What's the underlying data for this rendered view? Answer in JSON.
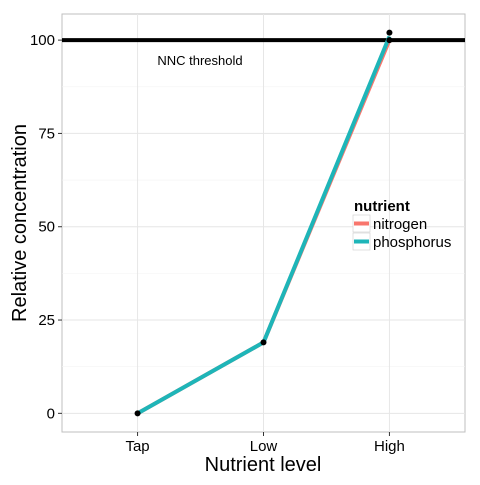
{
  "chart_data": {
    "type": "line",
    "categories": [
      "Tap",
      "Low",
      "High"
    ],
    "series": [
      {
        "name": "nitrogen",
        "color": "#F8766D",
        "values": [
          0,
          19,
          100
        ]
      },
      {
        "name": "phosphorus",
        "color": "#1EB5B8",
        "values": [
          0,
          19,
          101
        ]
      }
    ],
    "points": [
      {
        "category": "Tap",
        "value": 0
      },
      {
        "category": "Low",
        "value": 19
      },
      {
        "category": "High",
        "value": 100
      },
      {
        "category": "High",
        "value": 102
      }
    ],
    "point_color": "#000000",
    "hline": {
      "value": 100,
      "color": "#000000",
      "label": "NNC threshold"
    },
    "title": "",
    "xlabel": "Nutrient level",
    "ylabel": "Relative concentration",
    "ylim": [
      -5,
      107
    ],
    "yticks": [
      0,
      25,
      50,
      75,
      100
    ],
    "ytick_labels": [
      "0",
      "25",
      "50",
      "75",
      "100"
    ],
    "grid": true,
    "legend": {
      "title": "nutrient",
      "position": "right"
    }
  }
}
